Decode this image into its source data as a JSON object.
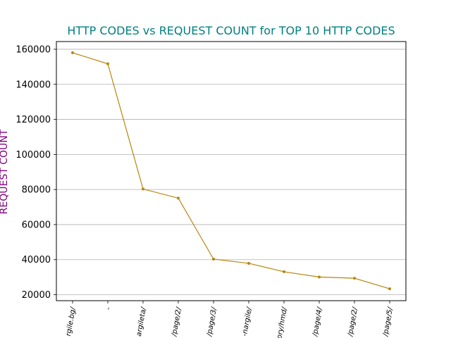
{
  "chart_data": {
    "type": "line",
    "title": "HTTP CODES vs REQUEST COUNT for TOP 10 HTTP CODES",
    "xlabel": "",
    "ylabel": "REQUEST COUNT",
    "categories": [
      "rgile.bg/",
      "-",
      "argileta/",
      "/page/2/",
      "/page/3/",
      "-nargile/",
      "ory/hmd/",
      "/page/4/",
      "/page/2/",
      "/page/5/"
    ],
    "values": [
      158000,
      151700,
      80300,
      75100,
      40300,
      37900,
      33100,
      30100,
      29400,
      23400
    ],
    "ylim": [
      16600,
      164400
    ],
    "yticks": [
      20000,
      40000,
      60000,
      80000,
      100000,
      120000,
      140000,
      160000
    ],
    "grid": "y-major",
    "legend": "none",
    "colors": {
      "line": "#b8860b",
      "title": "#008080",
      "ylabel": "#800080",
      "grid": "#b0b0b0"
    }
  }
}
